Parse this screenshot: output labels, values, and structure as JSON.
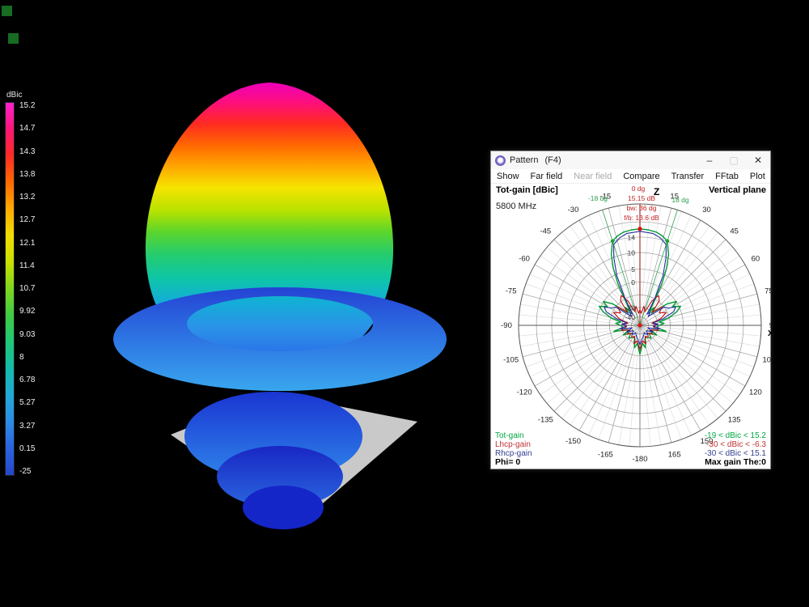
{
  "colorbar": {
    "title": "dBic",
    "labels": [
      "15.2",
      "14.7",
      "14.3",
      "13.8",
      "13.2",
      "12.7",
      "12.1",
      "11.4",
      "10.7",
      "9.92",
      "9.03",
      "8",
      "6.78",
      "5.27",
      "3.27",
      "0.15",
      "-25"
    ],
    "gradient": [
      "#ff22cc",
      "#ff1577",
      "#ff2c22",
      "#ff6a00",
      "#ffaa00",
      "#f2dd00",
      "#c8e000",
      "#7ed61e",
      "#3ecb44",
      "#1fc878",
      "#12bcab",
      "#22a9d6",
      "#2b8ce6",
      "#2b62e0",
      "#2547cc"
    ]
  },
  "window": {
    "title": "Pattern",
    "title_suffix": "(F4)",
    "controls": {
      "minimize": "–",
      "maximize": "▢",
      "close": "✕"
    },
    "menu": [
      {
        "label": "Show",
        "enabled": true
      },
      {
        "label": "Far field",
        "enabled": true
      },
      {
        "label": "Near field",
        "enabled": false
      },
      {
        "label": "Compare",
        "enabled": true
      },
      {
        "label": "Transfer",
        "enabled": true
      },
      {
        "label": "FFtab",
        "enabled": true
      },
      {
        "label": "Plot",
        "enabled": true
      }
    ],
    "plot": {
      "header_left": "Tot-gain [dBic]",
      "header_right": "Vertical plane",
      "frequency": "5800 MHz",
      "axis_top_label": "Z",
      "axis_right_label": "XY",
      "footer_left": "Phi= 0",
      "footer_right": "Max gain The:0",
      "annotations": {
        "top_angle": "0 dg",
        "max_gain": "15.15 dB",
        "beamwidth": "bw: 36 dg",
        "front_back": "f/b: 13.6 dB",
        "bw_left": "-18 dg",
        "bw_right": "18 dg",
        "color": "#c22222",
        "bw_color": "#2f9e4f"
      },
      "rings": [
        {
          "r": 1.0,
          "label": ""
        },
        {
          "r": 0.853,
          "label": ""
        },
        {
          "r": 0.727,
          "label": "14"
        },
        {
          "r": 0.6,
          "label": "10"
        },
        {
          "r": 0.463,
          "label": "5"
        },
        {
          "r": 0.357,
          "label": "0"
        },
        {
          "r": 0.25,
          "label": ""
        },
        {
          "r": 0.147,
          "label": "-20"
        },
        {
          "r": 0.07,
          "label": "-40"
        }
      ],
      "angle_labels": [
        {
          "a": 15,
          "t": "15"
        },
        {
          "a": 30,
          "t": "30"
        },
        {
          "a": 45,
          "t": "45"
        },
        {
          "a": 60,
          "t": "60"
        },
        {
          "a": 75,
          "t": "75"
        },
        {
          "a": 90,
          "t": "90"
        },
        {
          "a": 105,
          "t": "105"
        },
        {
          "a": 120,
          "t": "120"
        },
        {
          "a": 135,
          "t": "135"
        },
        {
          "a": 150,
          "t": "150"
        },
        {
          "a": 165,
          "t": "165"
        },
        {
          "a": 180,
          "t": "-180"
        },
        {
          "a": -15,
          "t": "-15"
        },
        {
          "a": -30,
          "t": "-30"
        },
        {
          "a": -45,
          "t": "-45"
        },
        {
          "a": -60,
          "t": "-60"
        },
        {
          "a": -75,
          "t": "-75"
        },
        {
          "a": -90,
          "t": "-90"
        },
        {
          "a": -105,
          "t": "-105"
        },
        {
          "a": -120,
          "t": "-120"
        },
        {
          "a": -135,
          "t": "-135"
        },
        {
          "a": -150,
          "t": "-150"
        },
        {
          "a": -165,
          "t": "-165"
        }
      ],
      "series": [
        {
          "name": "Tot-gain",
          "color": "#009933",
          "text_color": "#00a844",
          "range": "-19 < dBic < 15.2",
          "points": [
            [
              -180,
              0.24
            ],
            [
              -172,
              0.15
            ],
            [
              -166,
              0.19
            ],
            [
              -160,
              0.12
            ],
            [
              -150,
              0.11
            ],
            [
              -140,
              0.14
            ],
            [
              -130,
              0.1
            ],
            [
              -120,
              0.16
            ],
            [
              -112,
              0.1
            ],
            [
              -103,
              0.22
            ],
            [
              -97,
              0.14
            ],
            [
              -90,
              0.16
            ],
            [
              -85,
              0.2
            ],
            [
              -80,
              0.16
            ],
            [
              -76,
              0.24
            ],
            [
              -70,
              0.32
            ],
            [
              -65,
              0.37
            ],
            [
              -60,
              0.31
            ],
            [
              -57,
              0.36
            ],
            [
              -52,
              0.29
            ],
            [
              -47,
              0.18
            ],
            [
              -43,
              0.14
            ],
            [
              -39,
              0.19
            ],
            [
              -35,
              0.14
            ],
            [
              -31,
              0.22
            ],
            [
              -28,
              0.38
            ],
            [
              -25,
              0.52
            ],
            [
              -22,
              0.63
            ],
            [
              -18,
              0.73
            ],
            [
              -14,
              0.76
            ],
            [
              -10,
              0.78
            ],
            [
              -5,
              0.79
            ],
            [
              0,
              0.795
            ],
            [
              5,
              0.79
            ],
            [
              10,
              0.78
            ],
            [
              14,
              0.76
            ],
            [
              18,
              0.73
            ],
            [
              22,
              0.63
            ],
            [
              25,
              0.52
            ],
            [
              28,
              0.38
            ],
            [
              31,
              0.22
            ],
            [
              35,
              0.14
            ],
            [
              39,
              0.19
            ],
            [
              43,
              0.14
            ],
            [
              47,
              0.18
            ],
            [
              52,
              0.29
            ],
            [
              57,
              0.36
            ],
            [
              60,
              0.31
            ],
            [
              65,
              0.37
            ],
            [
              70,
              0.32
            ],
            [
              76,
              0.24
            ],
            [
              80,
              0.16
            ],
            [
              85,
              0.2
            ],
            [
              90,
              0.16
            ],
            [
              97,
              0.14
            ],
            [
              103,
              0.22
            ],
            [
              112,
              0.1
            ],
            [
              120,
              0.16
            ],
            [
              130,
              0.1
            ],
            [
              140,
              0.14
            ],
            [
              150,
              0.11
            ],
            [
              160,
              0.12
            ],
            [
              166,
              0.19
            ],
            [
              172,
              0.15
            ],
            [
              180,
              0.24
            ]
          ]
        },
        {
          "name": "Lhcp-gain",
          "color": "#bb1111",
          "text_color": "#c03333",
          "range": "-30 < dBic < -6.3",
          "points": [
            [
              -180,
              0.2
            ],
            [
              -170,
              0.13
            ],
            [
              -162,
              0.16
            ],
            [
              -155,
              0.1
            ],
            [
              -145,
              0.12
            ],
            [
              -135,
              0.09
            ],
            [
              -125,
              0.13
            ],
            [
              -115,
              0.09
            ],
            [
              -105,
              0.16
            ],
            [
              -95,
              0.11
            ],
            [
              -88,
              0.14
            ],
            [
              -80,
              0.1
            ],
            [
              -72,
              0.18
            ],
            [
              -64,
              0.24
            ],
            [
              -57,
              0.19
            ],
            [
              -50,
              0.24
            ],
            [
              -44,
              0.15
            ],
            [
              -38,
              0.26
            ],
            [
              -32,
              0.29
            ],
            [
              -26,
              0.22
            ],
            [
              -20,
              0.12
            ],
            [
              -12,
              0.16
            ],
            [
              -6,
              0.1
            ],
            [
              0,
              0.13
            ],
            [
              6,
              0.1
            ],
            [
              12,
              0.16
            ],
            [
              20,
              0.12
            ],
            [
              26,
              0.22
            ],
            [
              32,
              0.29
            ],
            [
              38,
              0.26
            ],
            [
              44,
              0.15
            ],
            [
              50,
              0.24
            ],
            [
              57,
              0.19
            ],
            [
              64,
              0.24
            ],
            [
              72,
              0.18
            ],
            [
              80,
              0.1
            ],
            [
              88,
              0.14
            ],
            [
              95,
              0.11
            ],
            [
              105,
              0.16
            ],
            [
              115,
              0.09
            ],
            [
              125,
              0.13
            ],
            [
              135,
              0.09
            ],
            [
              145,
              0.12
            ],
            [
              155,
              0.1
            ],
            [
              162,
              0.16
            ],
            [
              170,
              0.13
            ],
            [
              180,
              0.2
            ]
          ]
        },
        {
          "name": "Rhcp-gain",
          "color": "#1f2d9e",
          "text_color": "#33418f",
          "range": "-30 < dBic < 15.1",
          "points": [
            [
              -180,
              0.16
            ],
            [
              -170,
              0.11
            ],
            [
              -160,
              0.09
            ],
            [
              -150,
              0.07
            ],
            [
              -140,
              0.1
            ],
            [
              -128,
              0.07
            ],
            [
              -118,
              0.12
            ],
            [
              -108,
              0.07
            ],
            [
              -100,
              0.17
            ],
            [
              -92,
              0.11
            ],
            [
              -86,
              0.15
            ],
            [
              -80,
              0.11
            ],
            [
              -74,
              0.2
            ],
            [
              -68,
              0.3
            ],
            [
              -63,
              0.33
            ],
            [
              -58,
              0.27
            ],
            [
              -53,
              0.25
            ],
            [
              -48,
              0.14
            ],
            [
              -43,
              0.1
            ],
            [
              -38,
              0.14
            ],
            [
              -33,
              0.11
            ],
            [
              -29,
              0.25
            ],
            [
              -25,
              0.45
            ],
            [
              -21,
              0.6
            ],
            [
              -18,
              0.7
            ],
            [
              -13,
              0.74
            ],
            [
              -8,
              0.765
            ],
            [
              0,
              0.775
            ],
            [
              8,
              0.765
            ],
            [
              13,
              0.74
            ],
            [
              18,
              0.7
            ],
            [
              21,
              0.6
            ],
            [
              25,
              0.45
            ],
            [
              29,
              0.25
            ],
            [
              33,
              0.11
            ],
            [
              38,
              0.14
            ],
            [
              43,
              0.1
            ],
            [
              48,
              0.14
            ],
            [
              53,
              0.25
            ],
            [
              58,
              0.27
            ],
            [
              63,
              0.33
            ],
            [
              68,
              0.3
            ],
            [
              74,
              0.2
            ],
            [
              80,
              0.11
            ],
            [
              86,
              0.15
            ],
            [
              92,
              0.11
            ],
            [
              100,
              0.17
            ],
            [
              108,
              0.07
            ],
            [
              118,
              0.12
            ],
            [
              128,
              0.07
            ],
            [
              140,
              0.1
            ],
            [
              150,
              0.07
            ],
            [
              160,
              0.09
            ],
            [
              170,
              0.11
            ],
            [
              180,
              0.16
            ]
          ]
        }
      ],
      "markers": {
        "peak": {
          "angle": 0,
          "r": 0.795,
          "color": "#dd1111"
        },
        "bw_points": [
          {
            "angle": -18,
            "r": 0.73
          },
          {
            "angle": 18,
            "r": 0.73
          }
        ],
        "bw_point_color": "#1f9e3f",
        "center_color": "#dd1111"
      }
    }
  }
}
